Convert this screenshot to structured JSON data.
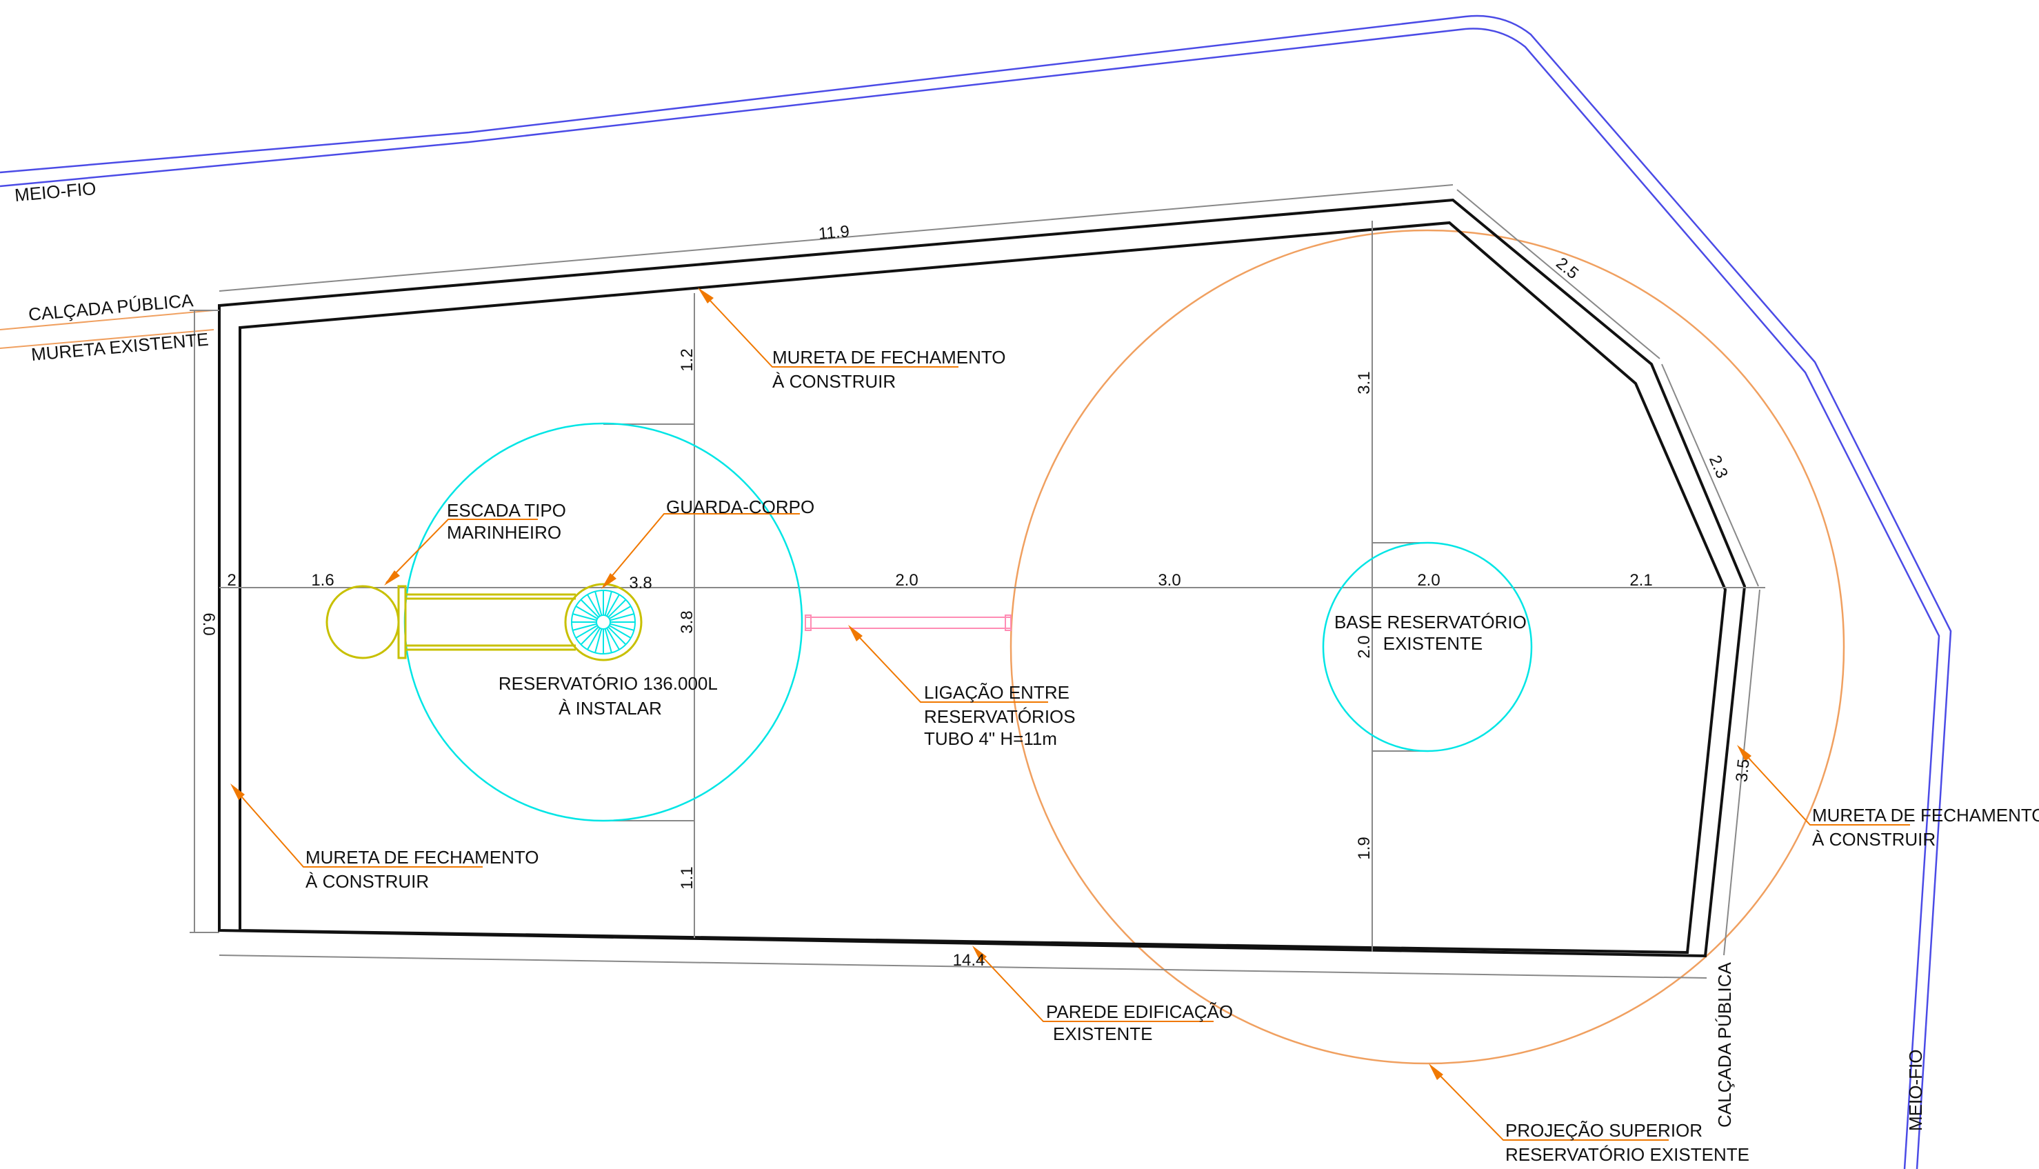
{
  "colors": {
    "background": "#ffffff",
    "wall": "#111111",
    "curb": "#4b4be6",
    "sidewalk": "#f0a060",
    "leader": "#f07800",
    "new_tank": "#00e5e5",
    "existing_tank_projection": "#f0a060",
    "ladder_and_rail": "#c8c000",
    "pipe": "#ff8cb4",
    "dimension": "#888888"
  },
  "street_labels": {
    "meio_fio_top": "MEIO-FIO",
    "meio_fio_right": "MEIO-FIO",
    "calcada_left": "CALÇADA PÚBLICA",
    "calcada_bottom": "CALÇADA PÚBLICA",
    "mureta_existente": "MURETA EXISTENTE"
  },
  "annotations": {
    "mureta_top": [
      "MURETA DE FECHAMENTO",
      "À CONSTRUIR"
    ],
    "mureta_left": [
      "MURETA DE FECHAMENTO",
      "À CONSTRUIR"
    ],
    "mureta_right": [
      "MURETA DE FECHAMENTO",
      "À CONSTRUIR"
    ],
    "escada": [
      "ESCADA TIPO",
      "MARINHEIRO"
    ],
    "guarda_corpo": [
      "GUARDA-CORPO"
    ],
    "reservatorio_novo": [
      "RESERVATÓRIO 136.000L",
      "À INSTALAR"
    ],
    "ligacao": [
      "LIGAÇÃO ENTRE",
      "RESERVATÓRIOS",
      "TUBO 4\" H=11m"
    ],
    "base_existente": [
      "BASE RESERVATÓRIO",
      "EXISTENTE"
    ],
    "parede": [
      "PAREDE EDIFICAÇÃO",
      "EXISTENTE"
    ],
    "projecao": [
      "PROJEÇÃO SUPERIOR",
      "RESERVATÓRIO EXISTENTE"
    ]
  },
  "dimensions": {
    "top_wall": "11.9",
    "diag_upper": "2.5",
    "diag_lower": "2.3",
    "right_wall": "3.5",
    "bottom_wall": "14.4",
    "left_height": "6.0",
    "chain": [
      "2",
      "1.6",
      "3.8",
      "2.0",
      "3.0",
      "2.0",
      "2.1"
    ],
    "new_tank_top_gap": "1.2",
    "new_tank_diameter": "3.8",
    "new_tank_bottom_gap": "1.1",
    "existing_top_gap": "3.1",
    "existing_base_diameter": "2.0",
    "existing_bottom_gap": "1.9"
  }
}
